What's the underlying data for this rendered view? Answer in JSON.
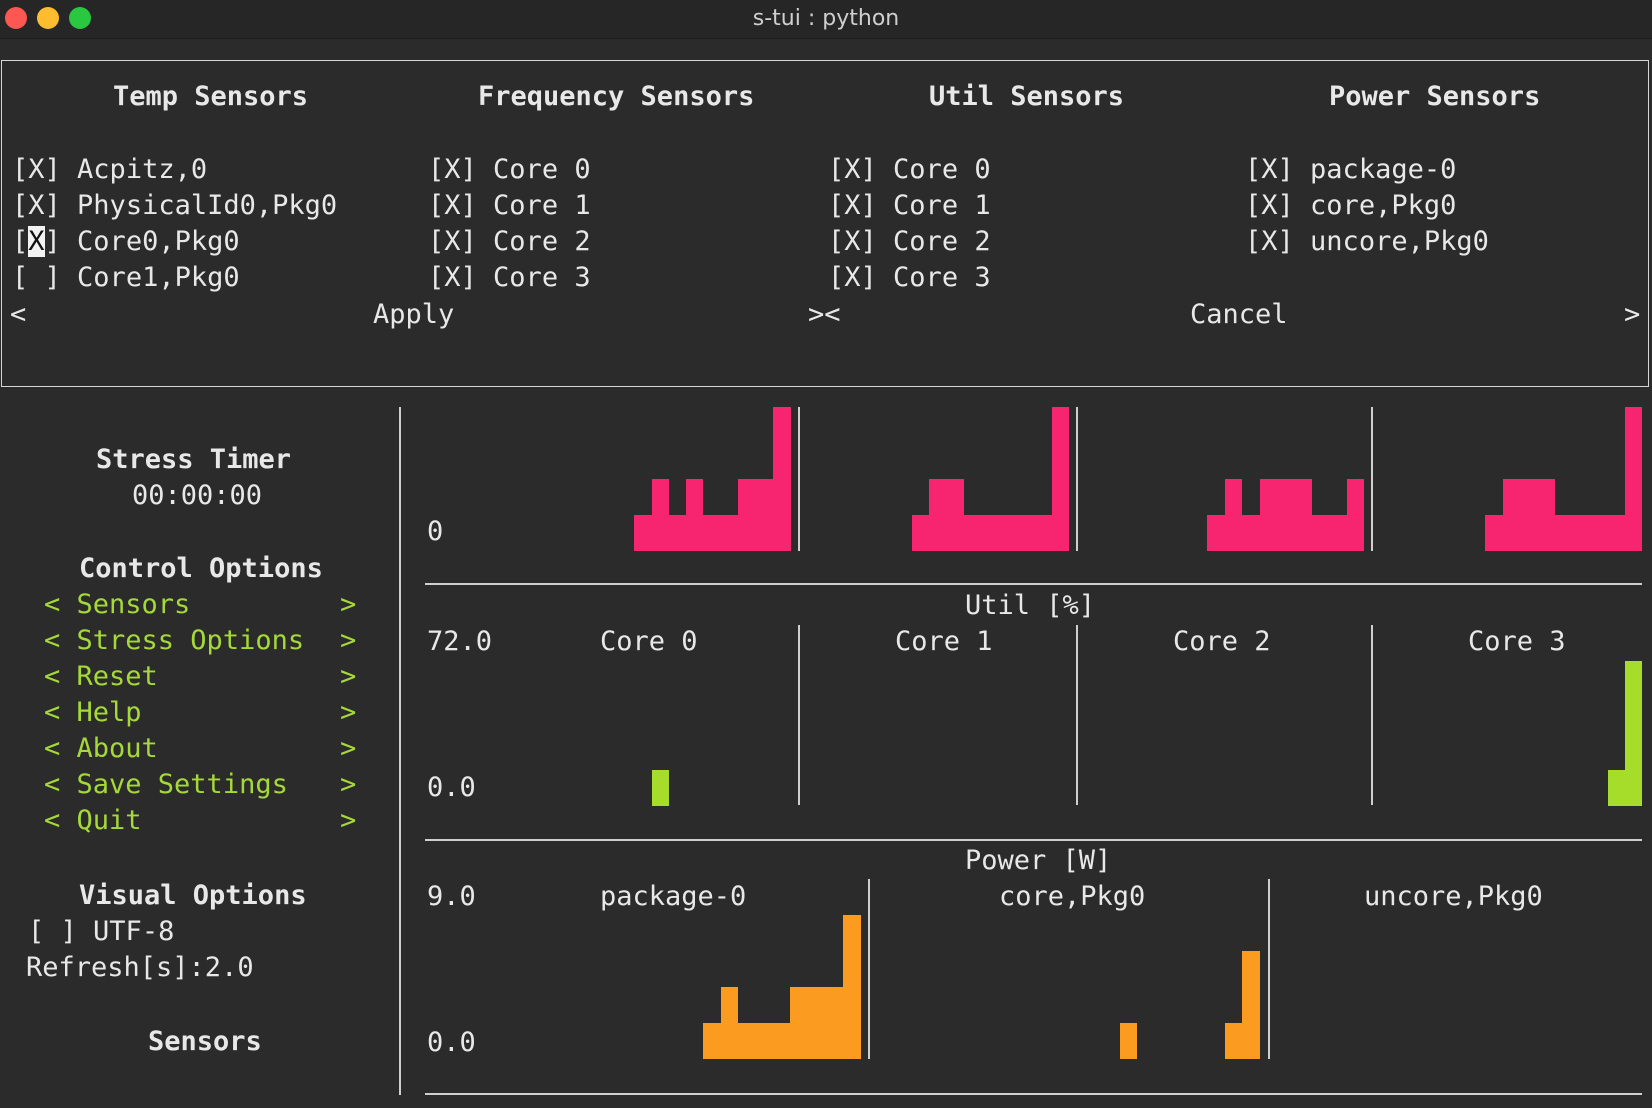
{
  "window": {
    "title": "s-tui : python"
  },
  "sensor_dialog": {
    "columns": [
      {
        "title": "Temp Sensors",
        "items": [
          {
            "check": "[X]",
            "label": "Acpitz,0"
          },
          {
            "check": "[X]",
            "label": "PhysicalId0,Pkg0"
          },
          {
            "check": "[X]",
            "label": "Core0,Pkg0"
          },
          {
            "check": "[ ]",
            "label": "Core1,Pkg0"
          }
        ]
      },
      {
        "title": "Frequency Sensors",
        "items": [
          {
            "check": "[X]",
            "label": "Core 0"
          },
          {
            "check": "[X]",
            "label": "Core 1"
          },
          {
            "check": "[X]",
            "label": "Core 2"
          },
          {
            "check": "[X]",
            "label": "Core 3"
          }
        ]
      },
      {
        "title": "Util Sensors",
        "items": [
          {
            "check": "[X]",
            "label": "Core 0"
          },
          {
            "check": "[X]",
            "label": "Core 1"
          },
          {
            "check": "[X]",
            "label": "Core 2"
          },
          {
            "check": "[X]",
            "label": "Core 3"
          }
        ]
      },
      {
        "title": "Power Sensors",
        "items": [
          {
            "check": "[X]",
            "label": "package-0"
          },
          {
            "check": "[X]",
            "label": "core,Pkg0"
          },
          {
            "check": "[X]",
            "label": "uncore,Pkg0"
          }
        ]
      }
    ],
    "apply_open": "<",
    "apply_label": "Apply",
    "middle_sep": "><",
    "cancel_label": "Cancel",
    "cancel_close": ">"
  },
  "sidebar": {
    "stress_timer_title": "Stress Timer",
    "stress_timer_value": "00:00:00",
    "control_title": "Control Options",
    "controls": [
      {
        "label": "Sensors"
      },
      {
        "label": "Stress Options"
      },
      {
        "label": "Reset"
      },
      {
        "label": "Help"
      },
      {
        "label": "About"
      },
      {
        "label": "Save Settings"
      },
      {
        "label": "Quit"
      }
    ],
    "visual_title": "Visual Options",
    "utf8_check": "[ ]",
    "utf8_label": "UTF-8",
    "refresh_label": "Refresh[s]:2.0",
    "sensors_title": "Sensors"
  },
  "graphs": {
    "top": {
      "y_min_label": "0",
      "color": "#f7256f"
    },
    "util": {
      "title": "Util [%]",
      "y_max_label": "72.0",
      "y_min_label": "0.0",
      "panels": [
        "Core 0",
        "Core 1",
        "Core 2",
        "Core 3"
      ],
      "color": "#a6dc2a"
    },
    "power": {
      "title": "Power [W]",
      "y_max_label": "9.0",
      "y_min_label": "0.0",
      "panels": [
        "package-0",
        "core,Pkg0",
        "uncore,Pkg0"
      ],
      "color": "#fb9b1f"
    }
  }
}
